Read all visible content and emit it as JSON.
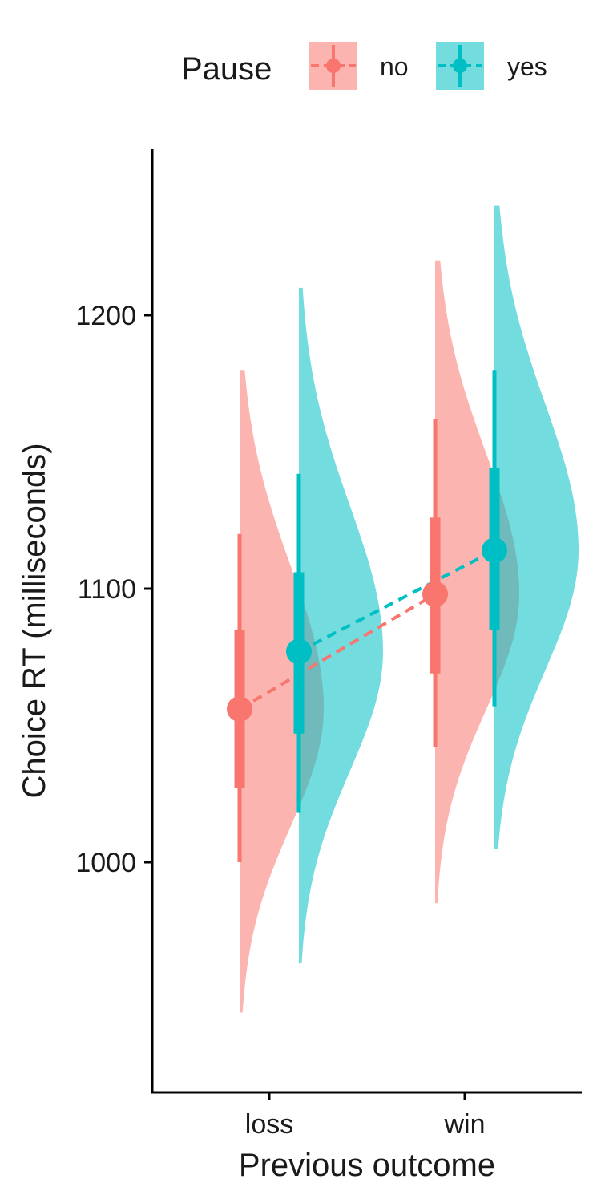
{
  "chart_data": {
    "type": "scatter",
    "subtype": "raincloud-pointrange",
    "xlabel": "Previous outcome",
    "ylabel": "Choice RT (milliseconds)",
    "categories": [
      "loss",
      "win"
    ],
    "ylim": [
      925,
      1265
    ],
    "yticks": [
      1000,
      1100,
      1200
    ],
    "grid": false,
    "legend": {
      "title": "Pause",
      "position": "top",
      "entries": [
        "no",
        "yes"
      ]
    },
    "series": [
      {
        "name": "no",
        "color": "#F8766D",
        "fill": "#F8766D",
        "points": [
          {
            "x": "loss",
            "y": 1056,
            "inner": [
              1027,
              1085
            ],
            "outer": [
              1000,
              1120
            ],
            "density_range": [
              945,
              1180
            ]
          },
          {
            "x": "win",
            "y": 1098,
            "inner": [
              1069,
              1126
            ],
            "outer": [
              1042,
              1162
            ],
            "density_range": [
              985,
              1220
            ]
          }
        ]
      },
      {
        "name": "yes",
        "color": "#00BFC4",
        "fill": "#00BFC4",
        "points": [
          {
            "x": "loss",
            "y": 1077,
            "inner": [
              1047,
              1106
            ],
            "outer": [
              1018,
              1142
            ],
            "density_range": [
              963,
              1210
            ]
          },
          {
            "x": "win",
            "y": 1114,
            "inner": [
              1085,
              1144
            ],
            "outer": [
              1057,
              1180
            ],
            "density_range": [
              1005,
              1240
            ]
          }
        ]
      }
    ]
  }
}
